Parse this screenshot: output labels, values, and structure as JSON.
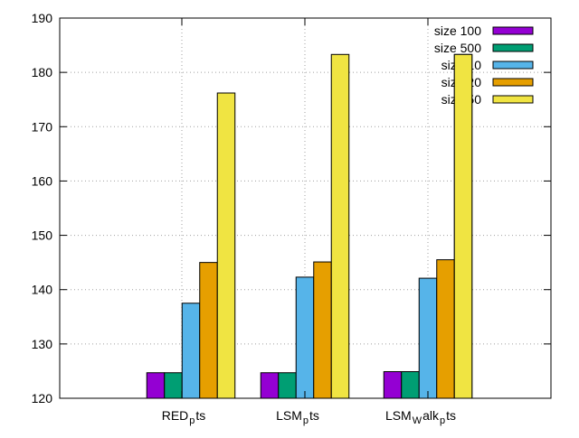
{
  "chart_data": {
    "type": "bar",
    "categories": [
      {
        "base": "RED",
        "sub": "p",
        "tail": "ts"
      },
      {
        "base": "LSM",
        "sub": "p",
        "tail": "ts"
      },
      {
        "base": "LSM",
        "sub": "W",
        "mid": "alk",
        "sub2": "p",
        "tail": "ts"
      }
    ],
    "series": [
      {
        "name": "size 100",
        "color": "#9400d3",
        "values": [
          124.7,
          124.7,
          124.9
        ]
      },
      {
        "name": "size 500",
        "color": "#009e73",
        "values": [
          124.7,
          124.7,
          124.9
        ]
      },
      {
        "name": "size 10",
        "color": "#56b4e9",
        "values": [
          137.5,
          142.3,
          142.1
        ]
      },
      {
        "name": "size 20",
        "color": "#e69f00",
        "values": [
          145.0,
          145.1,
          145.5
        ]
      },
      {
        "name": "size 50",
        "color": "#f0e442",
        "values": [
          176.2,
          183.3,
          183.3
        ]
      }
    ],
    "yticks": [
      120,
      130,
      140,
      150,
      160,
      170,
      180,
      190
    ],
    "ylim": [
      120,
      190
    ],
    "grid": true,
    "legend_position": "top-right"
  }
}
